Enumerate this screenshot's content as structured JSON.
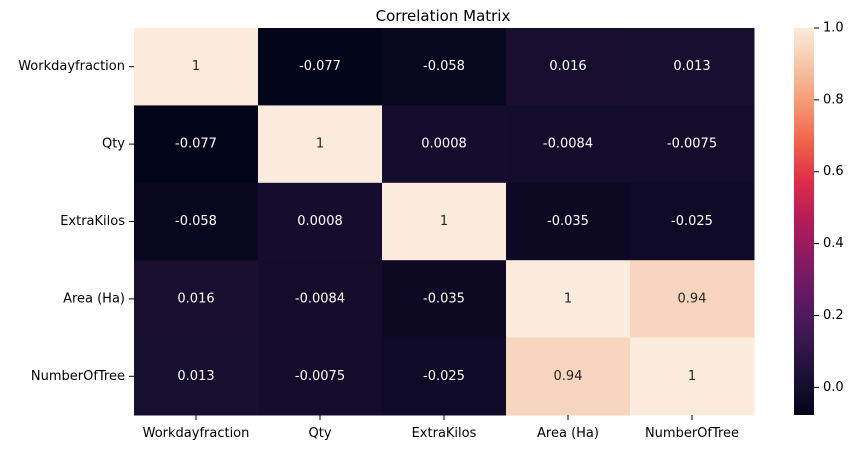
{
  "chart_data": {
    "type": "heatmap",
    "title": "Correlation Matrix",
    "xlabel": "",
    "ylabel": "",
    "x_categories": [
      "Workdayfraction",
      "Qty",
      "ExtraKilos",
      "Area (Ha)",
      "NumberOfTree"
    ],
    "y_categories": [
      "Workdayfraction",
      "Qty",
      "ExtraKilos",
      "Area (Ha)",
      "NumberOfTree"
    ],
    "values": [
      [
        1,
        -0.077,
        -0.058,
        0.016,
        0.013
      ],
      [
        -0.077,
        1,
        0.0008,
        -0.0084,
        -0.0075
      ],
      [
        -0.058,
        0.0008,
        1,
        -0.035,
        -0.025
      ],
      [
        0.016,
        -0.0084,
        -0.035,
        1,
        0.94
      ],
      [
        0.013,
        -0.0075,
        -0.025,
        0.94,
        1
      ]
    ],
    "value_labels": [
      [
        "1",
        "-0.077",
        "-0.058",
        "0.016",
        "0.013"
      ],
      [
        "-0.077",
        "1",
        "0.0008",
        "-0.0084",
        "-0.0075"
      ],
      [
        "-0.058",
        "0.0008",
        "1",
        "-0.035",
        "-0.025"
      ],
      [
        "0.016",
        "-0.0084",
        "-0.035",
        "1",
        "0.94"
      ],
      [
        "0.013",
        "-0.0075",
        "-0.025",
        "0.94",
        "1"
      ]
    ],
    "colorbar": {
      "vmin": -0.077,
      "vmax": 1,
      "ticks": [
        0.0,
        0.2,
        0.4,
        0.6,
        0.8,
        1.0
      ],
      "tick_labels": [
        "0.0",
        "0.2",
        "0.4",
        "0.6",
        "0.8",
        "1.0"
      ],
      "colormap": "rocket"
    },
    "grid": false,
    "legend": "colorbar-right"
  }
}
